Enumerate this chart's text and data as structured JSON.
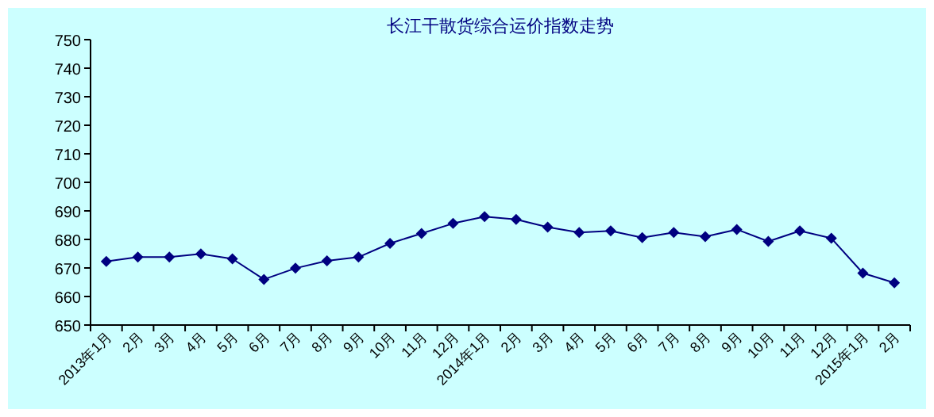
{
  "chart_data": {
    "type": "line",
    "title": "长江干散货综合运价指数走势",
    "categories": [
      "2013年1月",
      "2月",
      "3月",
      "4月",
      "5月",
      "6月",
      "7月",
      "8月",
      "9月",
      "10月",
      "11月",
      "12月",
      "2014年1月",
      "2月",
      "3月",
      "4月",
      "5月",
      "6月",
      "7月",
      "8月",
      "9月",
      "10月",
      "11月",
      "12月",
      "2015年1月",
      "2月"
    ],
    "series": [
      {
        "color": "#000080",
        "values": [
          672.3,
          673.8,
          673.8,
          674.9,
          673.2,
          666,
          669.9,
          672.5,
          673.8,
          678.6,
          682.1,
          685.6,
          688,
          687,
          684.3,
          682.4,
          683,
          680.6,
          682.4,
          681,
          683.5,
          679.3,
          683,
          680.4,
          668.2,
          664.8
        ]
      }
    ],
    "ylim": [
      650,
      750
    ],
    "yticks": [
      650,
      660,
      670,
      680,
      690,
      700,
      710,
      720,
      730,
      740,
      750
    ],
    "grid": false,
    "marker": "diamond",
    "line_style": "solid"
  }
}
